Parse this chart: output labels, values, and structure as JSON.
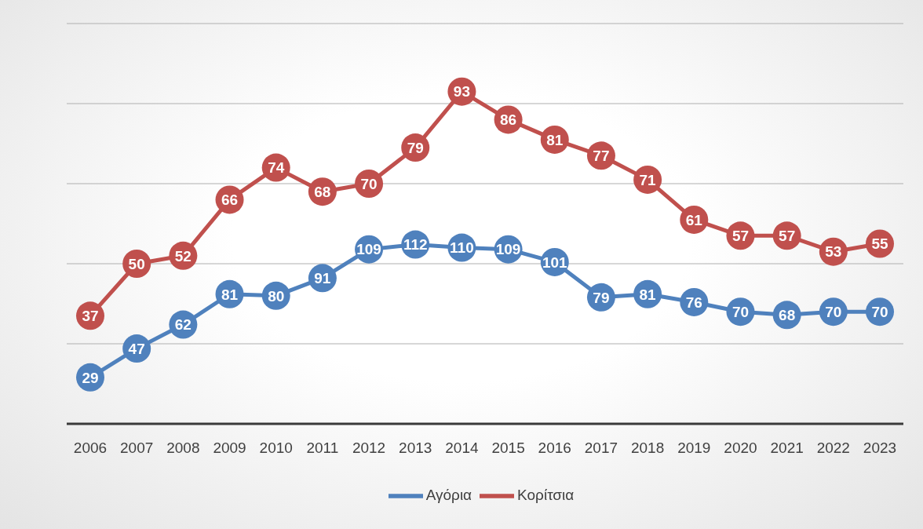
{
  "chart_data": {
    "type": "line",
    "categories": [
      "2006",
      "2007",
      "2008",
      "2009",
      "2010",
      "2011",
      "2012",
      "2013",
      "2014",
      "2015",
      "2016",
      "2017",
      "2018",
      "2019",
      "2020",
      "2021",
      "2022",
      "2023"
    ],
    "series": [
      {
        "name": "Αγόρια",
        "color": "#4f81bd",
        "values": [
          29,
          47,
          62,
          81,
          80,
          91,
          109,
          112,
          110,
          109,
          101,
          79,
          81,
          76,
          70,
          68,
          70,
          70
        ]
      },
      {
        "name": "Κορίτσια",
        "color": "#c0504d",
        "axis": "y2",
        "values": [
          37,
          50,
          52,
          66,
          74,
          68,
          70,
          79,
          93,
          86,
          81,
          77,
          71,
          61,
          57,
          57,
          53,
          55
        ]
      }
    ],
    "ylim": [
      0,
      250
    ],
    "y2lim": [
      10,
      110
    ],
    "tick_labels": "x",
    "grid": "y",
    "legend": "bottom",
    "marker": "circle",
    "line_style": "solid",
    "data_labels": true
  }
}
